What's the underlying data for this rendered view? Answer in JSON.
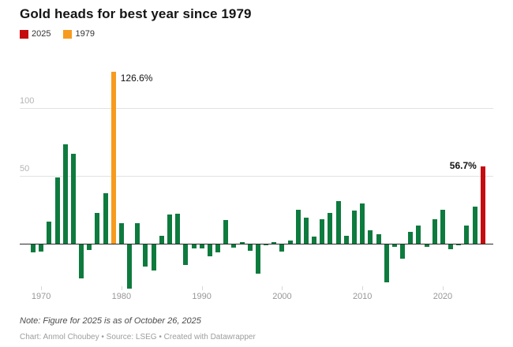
{
  "header": {
    "title": "Gold heads for best year since 1979"
  },
  "legend": [
    {
      "label": "2025",
      "color": "#c50d10"
    },
    {
      "label": "1979",
      "color": "#f79b1e"
    }
  ],
  "chart_data": {
    "type": "bar",
    "title": "Gold heads for best year since 1979",
    "unit": "%",
    "xlabel": "",
    "ylabel": "",
    "ylim": [
      -35,
      131
    ],
    "grid": "horizontal",
    "y_ticks": [
      50,
      100
    ],
    "x_ticks": [
      1970,
      1980,
      1990,
      2000,
      2010,
      2020
    ],
    "years": [
      1969,
      1970,
      1971,
      1972,
      1973,
      1974,
      1975,
      1976,
      1977,
      1978,
      1979,
      1980,
      1981,
      1982,
      1983,
      1984,
      1985,
      1986,
      1987,
      1988,
      1989,
      1990,
      1991,
      1992,
      1993,
      1994,
      1995,
      1996,
      1997,
      1998,
      1999,
      2000,
      2001,
      2002,
      2003,
      2004,
      2005,
      2006,
      2007,
      2008,
      2009,
      2010,
      2011,
      2012,
      2013,
      2014,
      2015,
      2016,
      2017,
      2018,
      2019,
      2020,
      2021,
      2022,
      2023,
      2024,
      2025
    ],
    "values": [
      -5.9,
      -5.1,
      16.4,
      48.7,
      73.5,
      66.1,
      -24.8,
      -4.1,
      22.6,
      37,
      126.6,
      15.2,
      -32.6,
      14.9,
      -16.3,
      -19.2,
      5.8,
      21.3,
      22.2,
      -15.3,
      -2.8,
      -3.1,
      -8.6,
      -5.7,
      17.7,
      -2.2,
      1,
      -4.6,
      -21.4,
      -0.8,
      0.9,
      -5.4,
      2.5,
      24.8,
      19.4,
      5.5,
      18,
      22.8,
      31.4,
      5.8,
      24.4,
      29.5,
      10.1,
      7.1,
      -28,
      -1.7,
      -10.4,
      8.6,
      13.1,
      -1.6,
      18.3,
      25.1,
      -3.6,
      -0.3,
      13.1,
      27.2,
      56.7
    ],
    "bar_colors": {
      "default": "#0e7b3e",
      "1979": "#f79b1e",
      "2025": "#c50d10"
    },
    "annotations": [
      {
        "year": 1979,
        "text": "126.6%",
        "bold": false,
        "side": "right"
      },
      {
        "year": 2025,
        "text": "56.7%",
        "bold": true,
        "side": "left"
      }
    ]
  },
  "footer": {
    "note": "Note: Figure for 2025 is as of October 26, 2025",
    "credit": "Chart: Anmol Choubey • Source: LSEG • Created with Datawrapper"
  }
}
